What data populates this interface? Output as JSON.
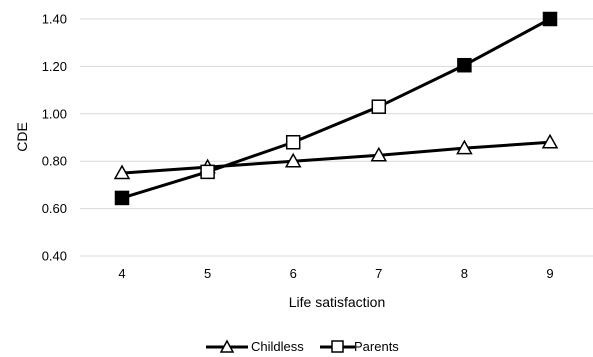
{
  "chart_data": {
    "type": "line",
    "title": "",
    "xlabel": "Life satisfaction",
    "ylabel": "CDE",
    "x": [
      4,
      5,
      6,
      7,
      8,
      9
    ],
    "xtick_labels": [
      "4",
      "5",
      "6",
      "7",
      "8",
      "9"
    ],
    "ylim": [
      0.4,
      1.4
    ],
    "yticks": [
      0.4,
      0.6,
      0.8,
      1.0,
      1.2,
      1.4
    ],
    "ytick_labels": [
      "0.40",
      "0.60",
      "0.80",
      "1.00",
      "1.20",
      "1.40"
    ],
    "grid": "horizontal",
    "legend_position": "bottom",
    "series": [
      {
        "name": "Childless",
        "marker": "triangle-open",
        "values": [
          0.75,
          0.775,
          0.8,
          0.825,
          0.855,
          0.88
        ]
      },
      {
        "name": "Parents",
        "marker": "square-mixed",
        "values": [
          0.645,
          0.755,
          0.88,
          1.03,
          1.205,
          1.4
        ],
        "filled_points": [
          true,
          false,
          false,
          false,
          true,
          true
        ]
      }
    ],
    "colors": {
      "line": "#000000",
      "grid": "#d9d9d9",
      "marker_fill_open": "#ffffff",
      "marker_fill_solid": "#000000"
    }
  }
}
